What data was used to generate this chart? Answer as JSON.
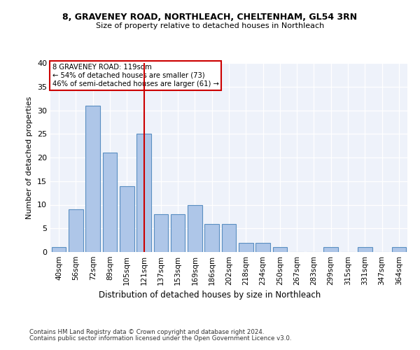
{
  "title1": "8, GRAVENEY ROAD, NORTHLEACH, CHELTENHAM, GL54 3RN",
  "title2": "Size of property relative to detached houses in Northleach",
  "xlabel": "Distribution of detached houses by size in Northleach",
  "ylabel": "Number of detached properties",
  "annotation_line1": "8 GRAVENEY ROAD: 119sqm",
  "annotation_line2": "← 54% of detached houses are smaller (73)",
  "annotation_line3": "46% of semi-detached houses are larger (61) →",
  "bar_color": "#aec6e8",
  "bar_edge_color": "#5a8fc2",
  "ref_line_color": "#cc0000",
  "annotation_box_color": "#cc0000",
  "background_color": "#eef2fa",
  "categories": [
    "40sqm",
    "56sqm",
    "72sqm",
    "89sqm",
    "105sqm",
    "121sqm",
    "137sqm",
    "153sqm",
    "169sqm",
    "186sqm",
    "202sqm",
    "218sqm",
    "234sqm",
    "250sqm",
    "267sqm",
    "283sqm",
    "299sqm",
    "315sqm",
    "331sqm",
    "347sqm",
    "364sqm"
  ],
  "values": [
    1,
    9,
    31,
    21,
    14,
    25,
    8,
    8,
    10,
    6,
    6,
    2,
    2,
    1,
    0,
    0,
    1,
    0,
    1,
    0,
    1
  ],
  "highlight_bar_index": 5,
  "ylim": [
    0,
    40
  ],
  "yticks": [
    0,
    5,
    10,
    15,
    20,
    25,
    30,
    35,
    40
  ],
  "footer1": "Contains HM Land Registry data © Crown copyright and database right 2024.",
  "footer2": "Contains public sector information licensed under the Open Government Licence v3.0."
}
